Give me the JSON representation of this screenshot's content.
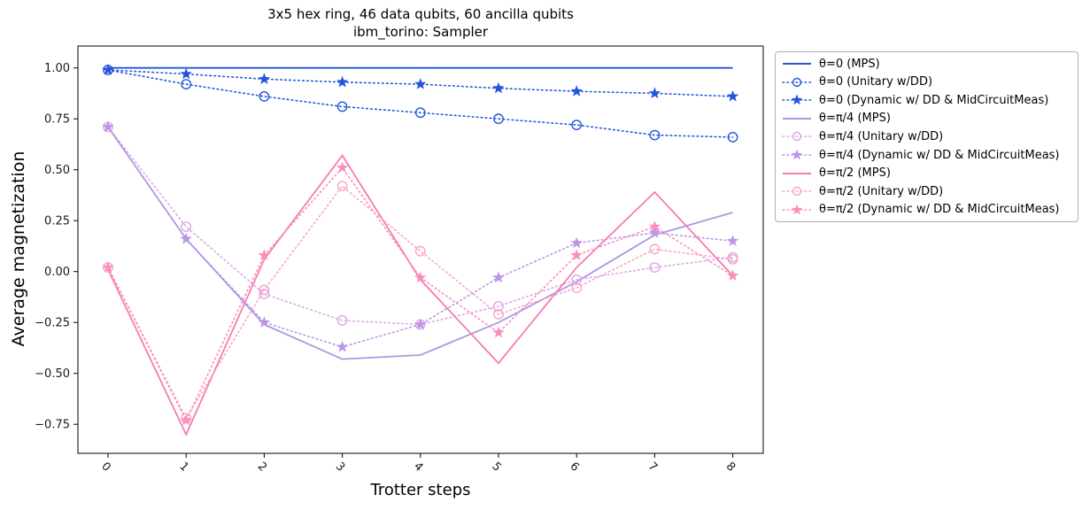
{
  "title": {
    "line1": "3x5 hex ring, 46 data qubits, 60 ancilla qubits",
    "line2": "ibm_torino: Sampler"
  },
  "axes": {
    "xlabel": "Trotter steps",
    "ylabel": "Average magnetization",
    "xticks": [
      "0",
      "1",
      "2",
      "3",
      "4",
      "5",
      "6",
      "7",
      "8"
    ],
    "yticks": [
      "1.00",
      "0.75",
      "0.50",
      "0.25",
      "0.00",
      "−0.25",
      "−0.50",
      "−0.75"
    ],
    "ytick_values": [
      1.0,
      0.75,
      0.5,
      0.25,
      0.0,
      -0.25,
      -0.5,
      -0.75
    ]
  },
  "chart_data": {
    "type": "line",
    "title": "3x5 hex ring, 46 data qubits, 60 ancilla qubits — ibm_torino: Sampler",
    "xlabel": "Trotter steps",
    "ylabel": "Average magnetization",
    "x": [
      0,
      1,
      2,
      3,
      4,
      5,
      6,
      7,
      8
    ],
    "ylim": [
      -0.89,
      1.11
    ],
    "grid": false,
    "legend_position": "outside upper right",
    "series": [
      {
        "name": "θ=0 (MPS)",
        "color": "#2356dd",
        "style": "solid",
        "marker": "none",
        "values": [
          1.0,
          1.0,
          1.0,
          1.0,
          1.0,
          1.0,
          1.0,
          1.0,
          1.0
        ]
      },
      {
        "name": "θ=0 (Unitary w/DD)",
        "color": "#2356dd",
        "style": "dotted",
        "marker": "circle",
        "values": [
          0.99,
          0.92,
          0.86,
          0.81,
          0.78,
          0.75,
          0.72,
          0.67,
          0.66
        ]
      },
      {
        "name": "θ=0 (Dynamic w/ DD & MidCircuitMeas)",
        "color": "#2356dd",
        "style": "dotted",
        "marker": "star",
        "values": [
          0.99,
          0.97,
          0.945,
          0.93,
          0.92,
          0.9,
          0.885,
          0.875,
          0.86
        ]
      },
      {
        "name": "θ=π/4 (MPS)",
        "color": "#a89ae1",
        "style": "solid",
        "marker": "none",
        "values": [
          0.71,
          0.16,
          -0.26,
          -0.43,
          -0.41,
          -0.25,
          -0.05,
          0.18,
          0.29
        ]
      },
      {
        "name": "θ=π/4 (Unitary w/DD)",
        "color": "#dca6e4",
        "style": "dotted",
        "marker": "circle",
        "values": [
          0.71,
          0.22,
          -0.11,
          -0.24,
          -0.26,
          -0.17,
          -0.04,
          0.02,
          0.07
        ]
      },
      {
        "name": "θ=π/4 (Dynamic w/ DD & MidCircuitMeas)",
        "color": "#bc95e6",
        "style": "dotted",
        "marker": "star",
        "values": [
          0.71,
          0.16,
          -0.25,
          -0.37,
          -0.26,
          -0.03,
          0.14,
          0.19,
          0.15
        ]
      },
      {
        "name": "θ=π/2 (MPS)",
        "color": "#f87bb1",
        "style": "solid",
        "marker": "none",
        "values": [
          0.01,
          -0.8,
          0.06,
          0.57,
          -0.04,
          -0.45,
          0.02,
          0.39,
          -0.02
        ]
      },
      {
        "name": "θ=π/2 (Unitary w/DD)",
        "color": "#f9a3c6",
        "style": "dotted",
        "marker": "circle",
        "values": [
          0.02,
          -0.72,
          -0.09,
          0.42,
          0.1,
          -0.21,
          -0.08,
          0.11,
          0.06
        ]
      },
      {
        "name": "θ=π/2 (Dynamic w/ DD & MidCircuitMeas)",
        "color": "#f98fbd",
        "style": "dotted",
        "marker": "star",
        "values": [
          0.02,
          -0.73,
          0.08,
          0.51,
          -0.03,
          -0.3,
          0.08,
          0.22,
          -0.02
        ]
      }
    ]
  }
}
